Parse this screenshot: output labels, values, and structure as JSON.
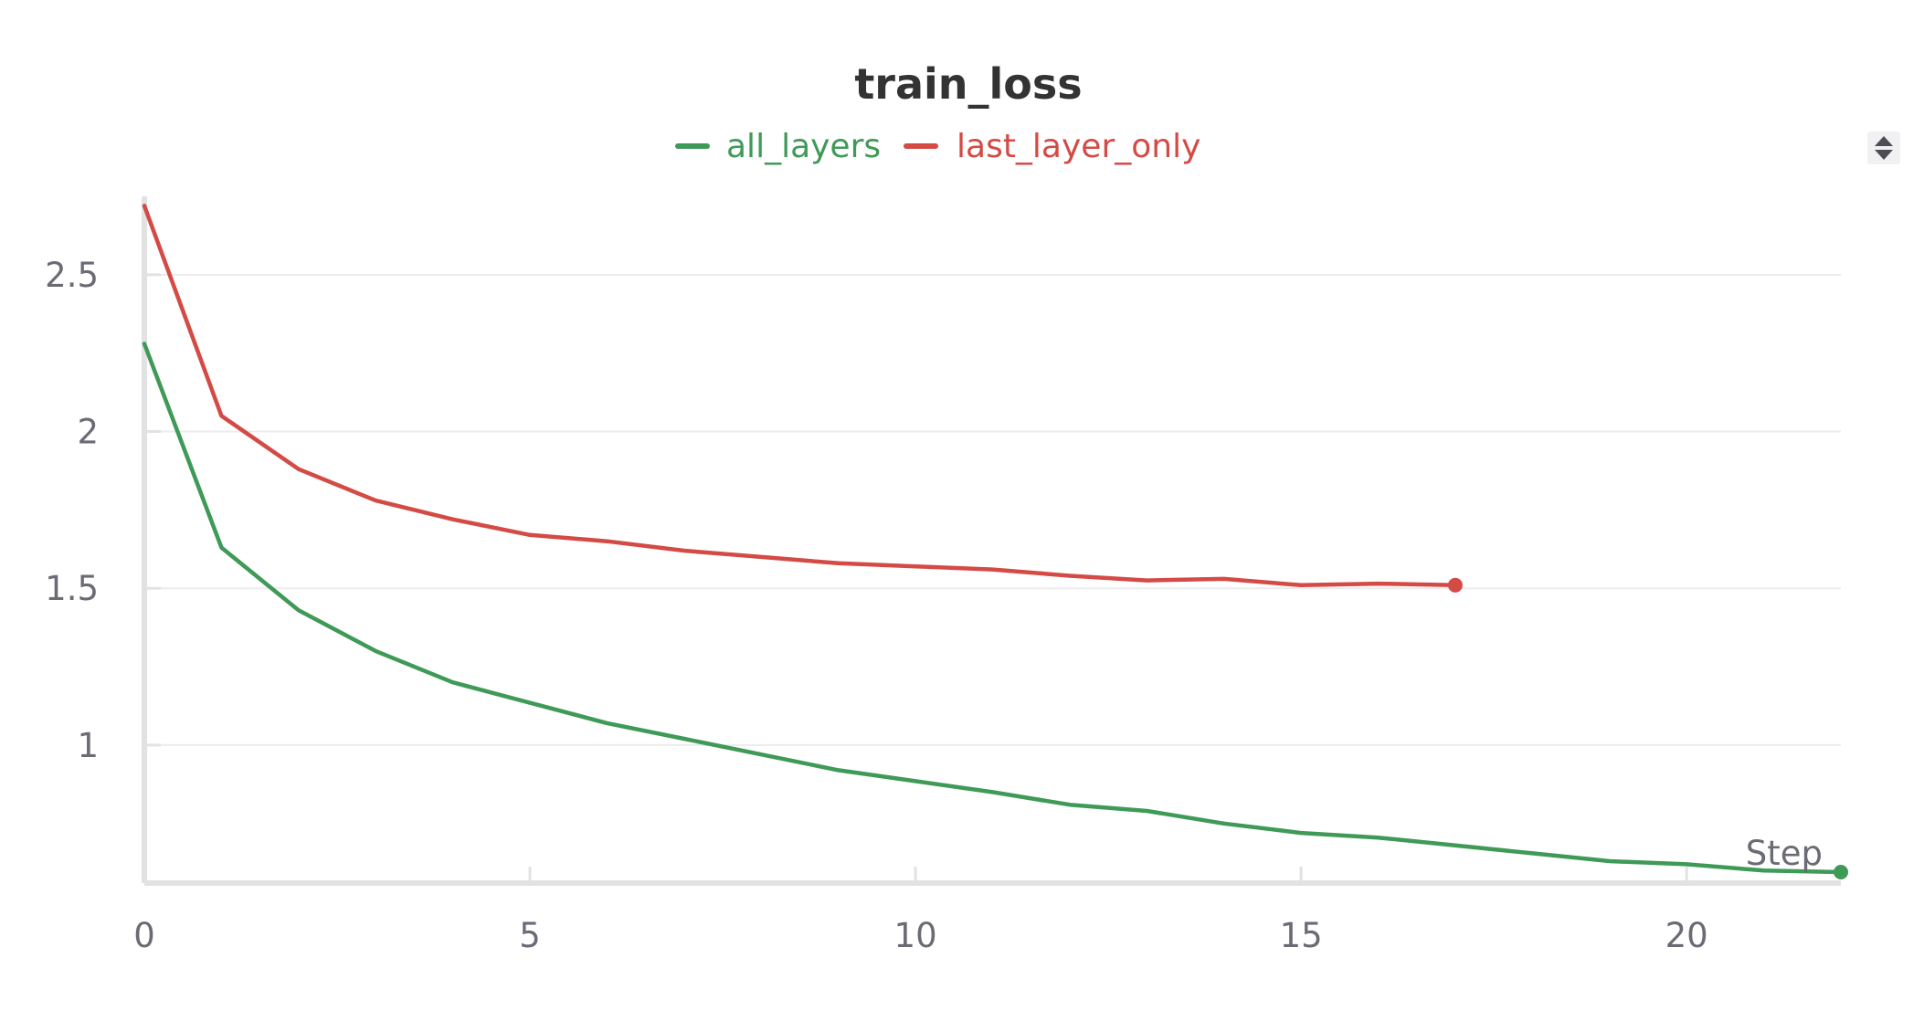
{
  "chart_data": {
    "type": "line",
    "title": "train_loss",
    "xlabel": "Step",
    "ylabel": "",
    "xlim": [
      0,
      22
    ],
    "ylim": [
      0.56,
      2.75
    ],
    "x_ticks": [
      0,
      5,
      10,
      15,
      20
    ],
    "y_ticks": [
      1,
      1.5,
      2,
      2.5
    ],
    "grid": true,
    "legend_position": "top-center",
    "series": [
      {
        "name": "all_layers",
        "color": "#3f9a57",
        "x": [
          0,
          1,
          2,
          3,
          4,
          5,
          6,
          7,
          8,
          9,
          10,
          11,
          12,
          13,
          14,
          15,
          16,
          17,
          18,
          19,
          20,
          21,
          22
        ],
        "y": [
          2.28,
          1.63,
          1.43,
          1.3,
          1.2,
          1.135,
          1.07,
          1.02,
          0.97,
          0.92,
          0.885,
          0.85,
          0.81,
          0.79,
          0.75,
          0.72,
          0.705,
          0.68,
          0.655,
          0.63,
          0.62,
          0.6,
          0.595
        ]
      },
      {
        "name": "last_layer_only",
        "color": "#d44a45",
        "x": [
          0,
          1,
          2,
          3,
          4,
          5,
          6,
          7,
          8,
          9,
          10,
          11,
          12,
          13,
          14,
          15,
          16,
          17
        ],
        "y": [
          2.72,
          2.05,
          1.88,
          1.78,
          1.72,
          1.67,
          1.65,
          1.62,
          1.6,
          1.58,
          1.57,
          1.56,
          1.54,
          1.525,
          1.53,
          1.51,
          1.515,
          1.51
        ]
      }
    ]
  },
  "controls": {
    "sort_icon": "sort-up-down-icon"
  }
}
